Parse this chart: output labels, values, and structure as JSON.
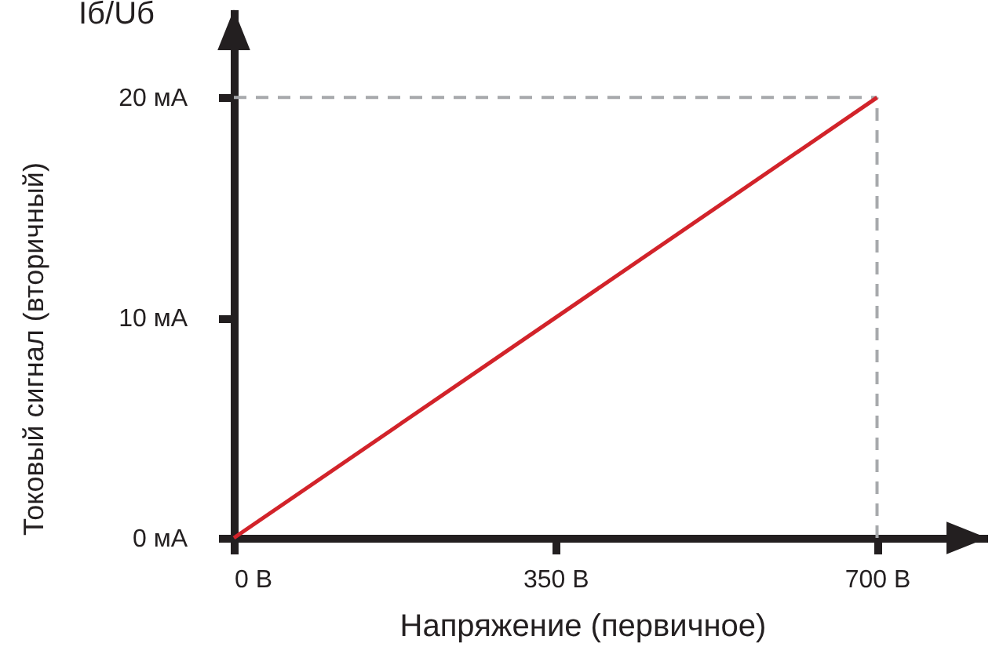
{
  "chart_data": {
    "type": "line",
    "title": "Iб/Uб",
    "xlabel": "Напряжение (первичное)",
    "ylabel": "Токовый сигнал (вторичный)",
    "x": [
      0,
      700
    ],
    "series": [
      {
        "color": "#d2232a",
        "values": [
          0,
          20
        ]
      }
    ],
    "xlim": [
      0,
      820
    ],
    "ylim": [
      0,
      24
    ],
    "xticks": [
      {
        "value": 0,
        "label": "0 В"
      },
      {
        "value": 350,
        "label": "350 В"
      },
      {
        "value": 700,
        "label": "700 В"
      }
    ],
    "yticks": [
      {
        "value": 0,
        "label": "0 мА"
      },
      {
        "value": 10,
        "label": "10 мА"
      },
      {
        "value": 20,
        "label": "20 мА"
      }
    ],
    "ref_lines": [
      {
        "axis": "x",
        "value": 700,
        "color": "#a7a9ac",
        "line_style": "dashed"
      },
      {
        "axis": "y",
        "value": 20,
        "color": "#a7a9ac",
        "line_style": "dashed"
      }
    ]
  }
}
